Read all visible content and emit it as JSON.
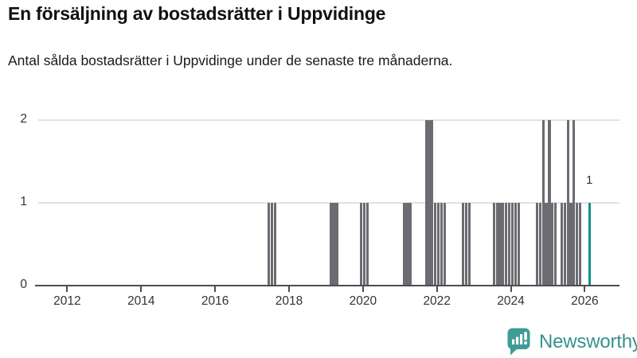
{
  "header": {
    "title": "En försäljning av bostadsrätter i Uppvidinge",
    "subtitle": "Antal sålda bostadsrätter i Uppvidinge under de senaste tre månaderna."
  },
  "footer": {
    "brand": "Newsworthy",
    "logo_icon": "bar-chart-speech-bubble-icon"
  },
  "colors": {
    "bar_gray": "#6B6B71",
    "bar_highlight_teal": "#10938B",
    "gridline": "#E2E2E2",
    "axis": "#4D4D4D",
    "tick_text": "#333333",
    "brand_teal": "#3E9C94",
    "brand_text": "#37938C"
  },
  "chart_data": {
    "type": "bar",
    "title": "En försäljning av bostadsrätter i Uppvidinge",
    "subtitle": "Antal sålda bostadsrätter i Uppvidinge under de senaste tre månaderna.",
    "xlabel": "",
    "ylabel": "",
    "x_axis": {
      "unit": "year-month",
      "visible_range": [
        "2011",
        "2027"
      ],
      "tick_years": [
        2012,
        2014,
        2016,
        2018,
        2020,
        2022,
        2024,
        2026
      ]
    },
    "y_axis": {
      "ticks": [
        0,
        1,
        2
      ],
      "ylim": [
        0,
        2
      ],
      "grid": true
    },
    "legend": "none",
    "annotation": {
      "text": "1",
      "attached_to": "last-bar"
    },
    "bars": [
      {
        "year": 2017,
        "month": 6,
        "value": 1
      },
      {
        "year": 2017,
        "month": 7,
        "value": 1
      },
      {
        "year": 2017,
        "month": 8,
        "value": 1
      },
      {
        "year": 2019,
        "month": 2,
        "value": 1
      },
      {
        "year": 2019,
        "month": 3,
        "value": 1
      },
      {
        "year": 2019,
        "month": 4,
        "value": 1
      },
      {
        "year": 2019,
        "month": 12,
        "value": 1
      },
      {
        "year": 2020,
        "month": 1,
        "value": 1
      },
      {
        "year": 2020,
        "month": 2,
        "value": 1
      },
      {
        "year": 2021,
        "month": 2,
        "value": 1
      },
      {
        "year": 2021,
        "month": 3,
        "value": 1
      },
      {
        "year": 2021,
        "month": 4,
        "value": 1
      },
      {
        "year": 2021,
        "month": 9,
        "value": 2
      },
      {
        "year": 2021,
        "month": 10,
        "value": 2
      },
      {
        "year": 2021,
        "month": 11,
        "value": 2
      },
      {
        "year": 2021,
        "month": 12,
        "value": 1
      },
      {
        "year": 2022,
        "month": 1,
        "value": 1
      },
      {
        "year": 2022,
        "month": 2,
        "value": 1
      },
      {
        "year": 2022,
        "month": 3,
        "value": 1
      },
      {
        "year": 2022,
        "month": 9,
        "value": 1
      },
      {
        "year": 2022,
        "month": 10,
        "value": 1
      },
      {
        "year": 2022,
        "month": 11,
        "value": 1
      },
      {
        "year": 2023,
        "month": 7,
        "value": 1
      },
      {
        "year": 2023,
        "month": 8,
        "value": 1
      },
      {
        "year": 2023,
        "month": 9,
        "value": 1
      },
      {
        "year": 2023,
        "month": 10,
        "value": 1
      },
      {
        "year": 2023,
        "month": 11,
        "value": 1
      },
      {
        "year": 2023,
        "month": 12,
        "value": 1
      },
      {
        "year": 2024,
        "month": 1,
        "value": 1
      },
      {
        "year": 2024,
        "month": 2,
        "value": 1
      },
      {
        "year": 2024,
        "month": 3,
        "value": 1
      },
      {
        "year": 2024,
        "month": 9,
        "value": 1
      },
      {
        "year": 2024,
        "month": 10,
        "value": 1
      },
      {
        "year": 2024,
        "month": 11,
        "value": 2
      },
      {
        "year": 2024,
        "month": 12,
        "value": 1
      },
      {
        "year": 2025,
        "month": 1,
        "value": 2
      },
      {
        "year": 2025,
        "month": 2,
        "value": 1
      },
      {
        "year": 2025,
        "month": 3,
        "value": 1
      },
      {
        "year": 2025,
        "month": 5,
        "value": 1
      },
      {
        "year": 2025,
        "month": 6,
        "value": 1
      },
      {
        "year": 2025,
        "month": 7,
        "value": 2
      },
      {
        "year": 2025,
        "month": 8,
        "value": 1
      },
      {
        "year": 2025,
        "month": 9,
        "value": 2
      },
      {
        "year": 2025,
        "month": 10,
        "value": 1
      },
      {
        "year": 2025,
        "month": 11,
        "value": 1
      },
      {
        "year": 2026,
        "month": 2,
        "value": 1,
        "highlight": true,
        "label": "1"
      }
    ]
  }
}
